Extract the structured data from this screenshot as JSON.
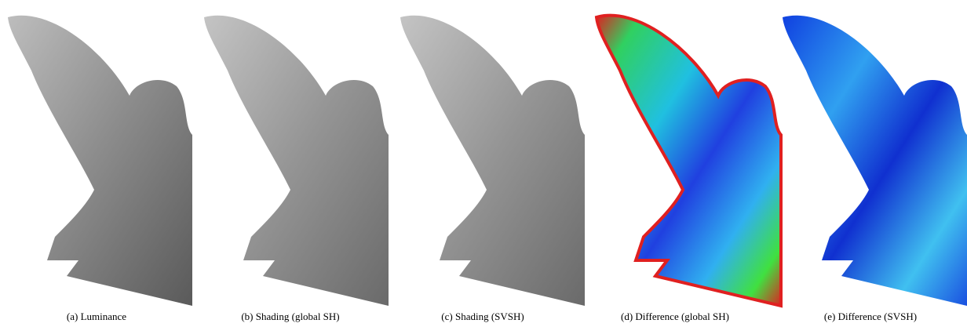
{
  "figure": {
    "panels": [
      {
        "caption": "(a) Luminance"
      },
      {
        "caption": "(b) Shading (global SH)"
      },
      {
        "caption": "(c) Shading (SVSH)"
      },
      {
        "caption": "(d) Difference (global SH)"
      },
      {
        "caption": "(e) Difference (SVSH)"
      }
    ]
  }
}
